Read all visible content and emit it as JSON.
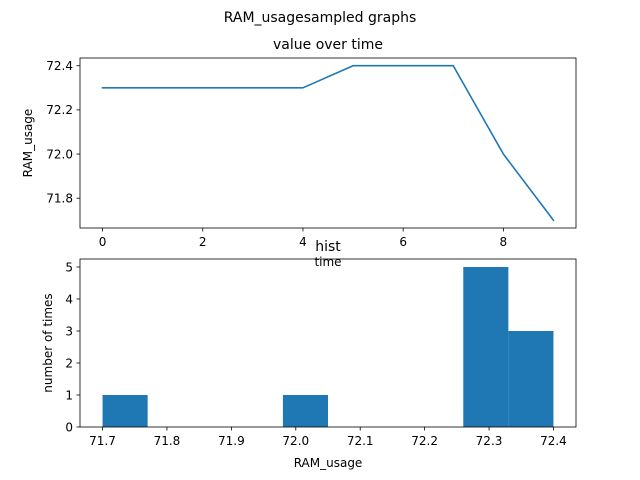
{
  "figure": {
    "suptitle": "RAM_usagesampled graphs"
  },
  "colors": {
    "series": "#1f77b4",
    "axes": "#000000",
    "background": "#ffffff"
  },
  "chart_data": [
    {
      "type": "line",
      "title": "value over time",
      "xlabel": "time",
      "ylabel": "RAM_usage",
      "x": [
        0,
        1,
        2,
        3,
        4,
        5,
        6,
        7,
        8,
        9
      ],
      "series": [
        {
          "values": [
            72.3,
            72.3,
            72.3,
            72.3,
            72.3,
            72.4,
            72.4,
            72.4,
            72.0,
            71.7
          ]
        }
      ],
      "xlim": [
        -0.45,
        9.45
      ],
      "ylim": [
        71.665,
        72.435
      ],
      "xticks": [
        0,
        2,
        4,
        6,
        8
      ],
      "xtick_labels": [
        "0",
        "2",
        "4",
        "6",
        "8"
      ],
      "yticks": [
        71.8,
        72.0,
        72.2,
        72.4
      ],
      "ytick_labels": [
        "71.8",
        "72.0",
        "72.2",
        "72.4"
      ],
      "grid": false,
      "legend": "none"
    },
    {
      "type": "bar",
      "subtype": "histogram",
      "title": "hist",
      "xlabel": "RAM_usage",
      "ylabel": "number of times",
      "bins": [
        [
          71.7,
          71.77
        ],
        [
          71.77,
          71.84
        ],
        [
          71.84,
          71.91
        ],
        [
          71.91,
          71.98
        ],
        [
          71.98,
          72.05
        ],
        [
          72.05,
          72.12
        ],
        [
          72.12,
          72.19
        ],
        [
          72.19,
          72.26
        ],
        [
          72.26,
          72.33
        ],
        [
          72.33,
          72.4
        ]
      ],
      "values": [
        1,
        0,
        0,
        0,
        1,
        0,
        0,
        0,
        5,
        3
      ],
      "xlim": [
        71.665,
        72.435
      ],
      "ylim": [
        0,
        5.25
      ],
      "xticks": [
        71.7,
        71.8,
        71.9,
        72.0,
        72.1,
        72.2,
        72.3,
        72.4
      ],
      "xtick_labels": [
        "71.7",
        "71.8",
        "71.9",
        "72.0",
        "72.1",
        "72.2",
        "72.3",
        "72.4"
      ],
      "yticks": [
        0,
        1,
        2,
        3,
        4,
        5
      ],
      "ytick_labels": [
        "0",
        "1",
        "2",
        "3",
        "4",
        "5"
      ],
      "grid": false,
      "legend": "none"
    }
  ]
}
